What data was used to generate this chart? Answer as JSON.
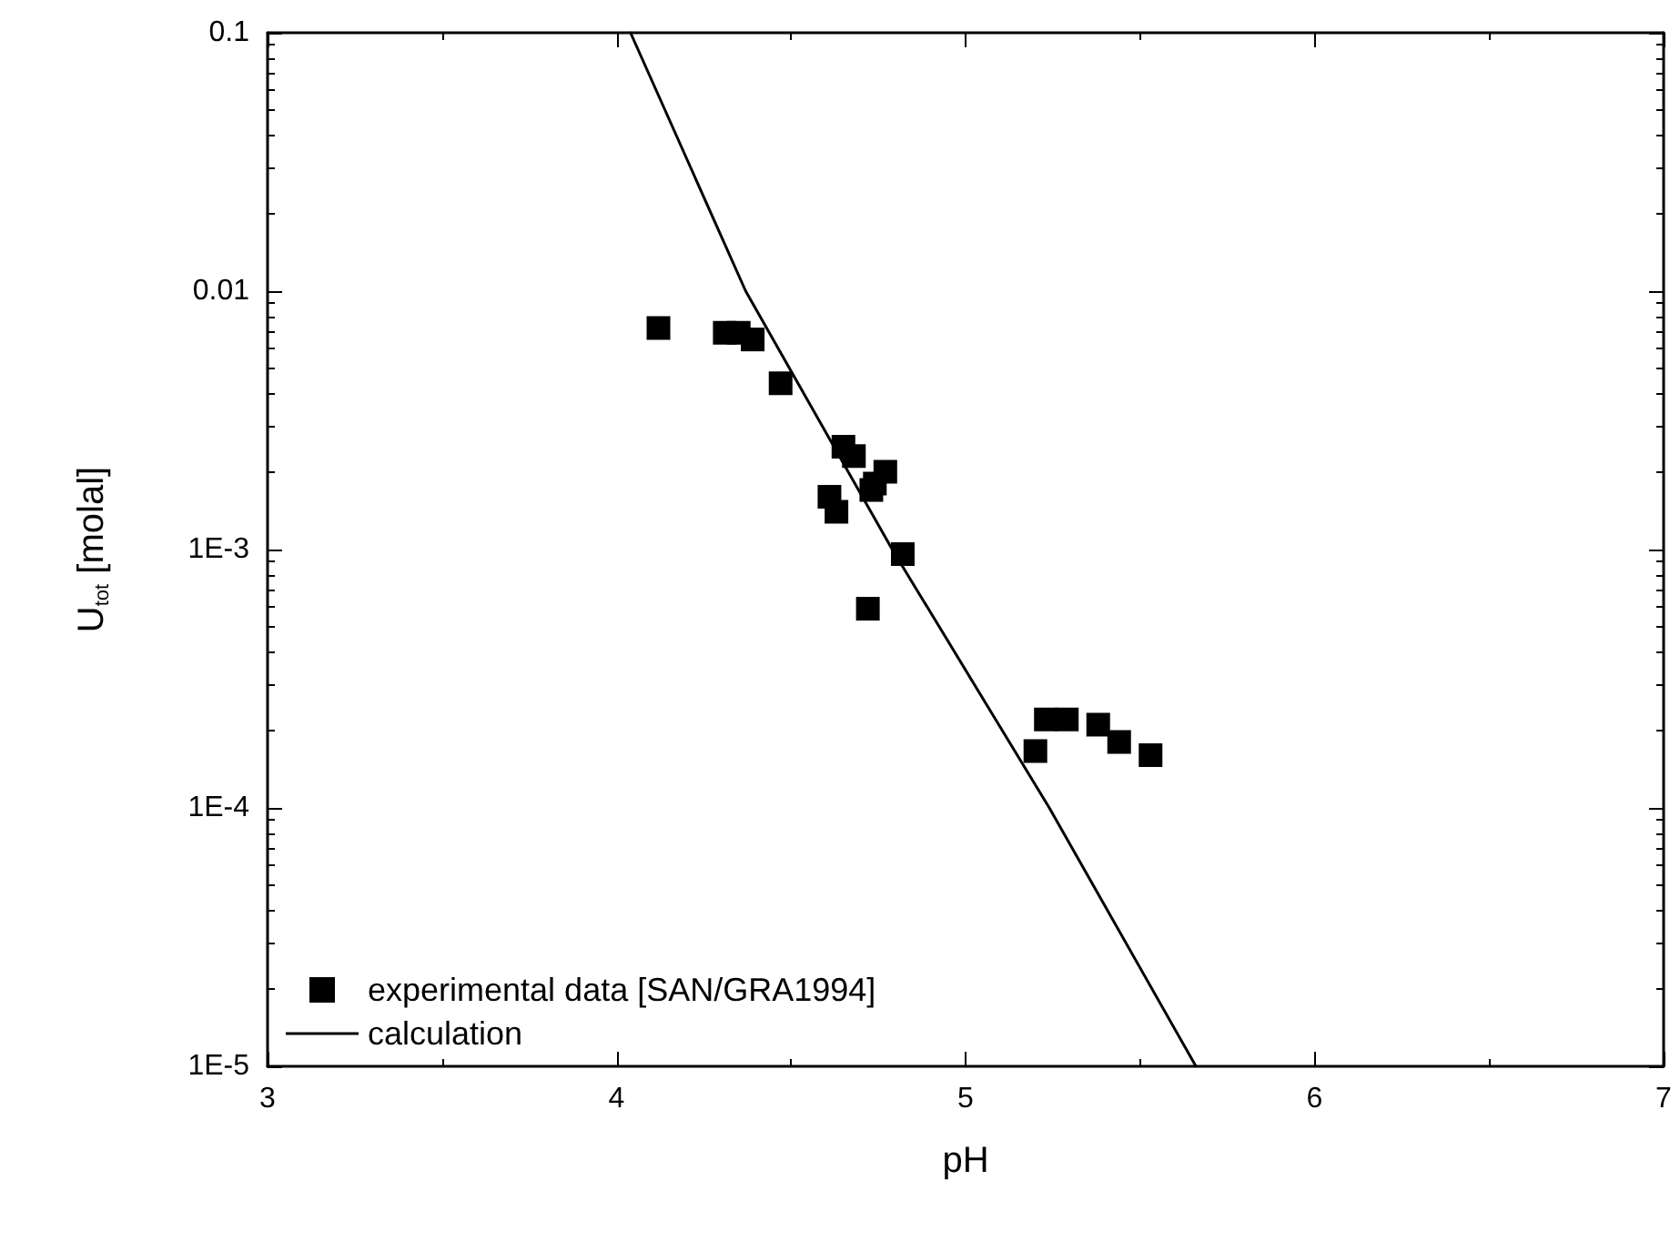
{
  "chart_data": {
    "type": "scatter",
    "xlabel": "pH",
    "ylabel": "U$_{tot}$ [molal]",
    "xlim": [
      3,
      7
    ],
    "xticks": [
      3,
      4,
      5,
      6,
      7
    ],
    "ylim": [
      1e-05,
      0.1
    ],
    "yticks": [
      {
        "value": 1e-05,
        "label": "1E-5"
      },
      {
        "value": 0.0001,
        "label": "1E-4"
      },
      {
        "value": 0.001,
        "label": "1E-3"
      },
      0.01,
      0.1
    ],
    "log": "y",
    "grid": false,
    "legend": "bottom left",
    "series": [
      {
        "name": "experimental data [SAN/GRA1994]",
        "marker": "square",
        "color": "#000000",
        "x": [
          4.12,
          4.31,
          4.35,
          4.39,
          4.47,
          4.65,
          4.68,
          4.61,
          4.63,
          4.73,
          4.74,
          4.77,
          4.82,
          4.72,
          5.2,
          5.23,
          5.29,
          5.38,
          5.44,
          5.53
        ],
        "values": [
          0.0072,
          0.0069,
          0.0069,
          0.0065,
          0.0044,
          0.0025,
          0.0023,
          0.0016,
          0.0014,
          0.0017,
          0.0018,
          0.002,
          0.00096,
          0.00059,
          0.000166,
          0.00022,
          0.00022,
          0.00021,
          0.00018,
          0.00016
        ]
      },
      {
        "name": "calculation",
        "type": "line",
        "marker": "none",
        "line_style": "solid",
        "color": "#000000",
        "x": [
          4.04,
          4.37,
          4.79,
          5.24,
          5.66
        ],
        "values": [
          0.1,
          0.01,
          0.001,
          0.0001,
          1e-05
        ]
      }
    ]
  }
}
